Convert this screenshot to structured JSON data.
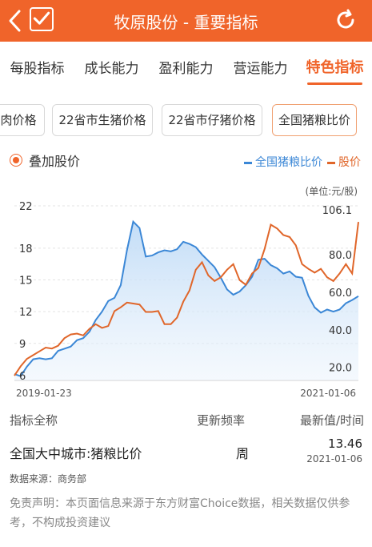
{
  "header": {
    "title": "牧原股份 - 重要指标",
    "back_icon": "chevron-left-icon",
    "check_icon": "check-box-icon",
    "refresh_icon": "refresh-icon"
  },
  "tabs": [
    {
      "label": "每股指标"
    },
    {
      "label": "成长能力"
    },
    {
      "label": "盈利能力"
    },
    {
      "label": "营运能力"
    },
    {
      "label": "特色指标",
      "active": true
    }
  ],
  "subtabs": [
    {
      "label": "肉价格"
    },
    {
      "label": "22省市生猪价格"
    },
    {
      "label": "22省市仔猪价格"
    },
    {
      "label": "全国猪粮比价",
      "active": true
    }
  ],
  "overlay_label": "叠加股价",
  "legend": {
    "series1": "全国猪粮比价",
    "series2": "股价"
  },
  "unit_label": "(单位:元/股)",
  "colors": {
    "accent": "#f0642a",
    "ratio_line": "#3b87d6",
    "price_line": "#e0662a"
  },
  "chart_data": {
    "type": "line",
    "x_start": "2019-01-23",
    "x_end": "2021-01-06",
    "left_axis": {
      "ticks": [
        "22",
        "18",
        "15",
        "12",
        "9",
        "6"
      ],
      "ylim": [
        5.5,
        22
      ]
    },
    "right_axis": {
      "ticks": [
        "106.1",
        "80.0",
        "60.0",
        "40.0",
        "20.0"
      ],
      "ylim": [
        13,
        106.1
      ]
    },
    "series": [
      {
        "name": "全国猪粮比价",
        "axis": "left",
        "values": [
          6.1,
          5.9,
          6.8,
          7.5,
          7.6,
          7.5,
          7.6,
          8.3,
          8.5,
          8.7,
          9.3,
          9.5,
          10.1,
          11.2,
          12.0,
          13.0,
          13.3,
          14.5,
          17.8,
          20.5,
          19.9,
          17.2,
          17.3,
          17.6,
          17.8,
          17.7,
          17.9,
          18.6,
          18.4,
          18.1,
          17.4,
          16.8,
          16.2,
          15.2,
          14.1,
          13.6,
          13.9,
          14.5,
          15.3,
          16.9,
          17.0,
          16.4,
          16.1,
          15.6,
          15.8,
          15.3,
          15.2,
          13.5,
          12.4,
          11.9,
          12.2,
          12.0,
          12.2,
          12.8,
          13.1,
          13.46
        ]
      },
      {
        "name": "股价",
        "axis": "right",
        "values": [
          15.5,
          20.5,
          24.5,
          26.5,
          28.5,
          30.5,
          30.0,
          31.5,
          35.5,
          37.5,
          38.0,
          37.0,
          40.5,
          43.0,
          41.0,
          42.0,
          50.0,
          52.0,
          54.5,
          54.0,
          53.5,
          49.5,
          49.5,
          50.0,
          43.0,
          43.0,
          46.5,
          55.0,
          61.0,
          72.0,
          76.0,
          69.0,
          66.0,
          68.0,
          72.0,
          75.0,
          66.5,
          64.0,
          70.0,
          73.0,
          83.0,
          96.0,
          94.0,
          90.5,
          89.5,
          85.0,
          75.0,
          72.5,
          70.5,
          72.5,
          68.0,
          66.0,
          70.0,
          75.0,
          70.0,
          97.5
        ]
      }
    ]
  },
  "info": {
    "col_name": "指标全称",
    "col_freq": "更新频率",
    "col_latest": "最新值/时间",
    "row_name": "全国大中城市:猪粮比价",
    "row_freq": "周",
    "row_value": "13.46",
    "row_date": "2021-01-06",
    "source": "数据来源：商务部",
    "disclaimer": "免责声明：本页面信息来源于东方财富Choice数据，相关数据仅供参考，不构成投资建议"
  }
}
